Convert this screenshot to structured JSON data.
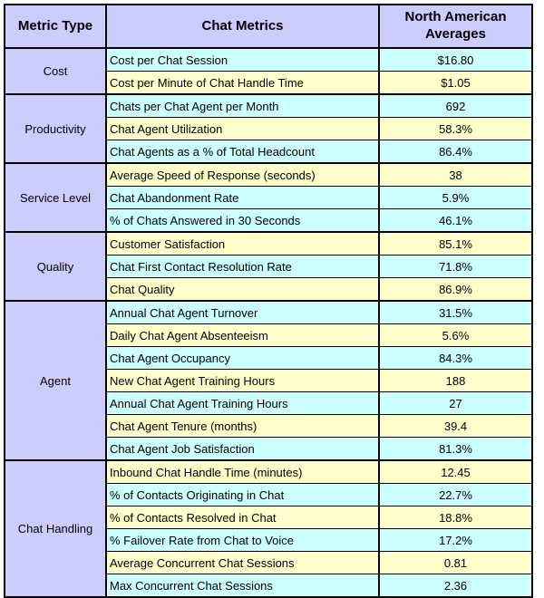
{
  "colors": {
    "lavender": "#CCCCFF",
    "cyan": "#CCFFFF",
    "yellow": "#FFFFCC",
    "border": "#000000",
    "text": "#000000",
    "page_bg": "#FFFFFF"
  },
  "columns": [
    "Metric Type",
    "Chat Metrics",
    "North American Averages"
  ],
  "groups": [
    {
      "type": "Cost",
      "rows": [
        {
          "metric": "Cost per Chat Session",
          "value": "$16.80",
          "tint": "cyan"
        },
        {
          "metric": "Cost per Minute of Chat Handle Time",
          "value": "$1.05",
          "tint": "yellow"
        }
      ]
    },
    {
      "type": "Productivity",
      "rows": [
        {
          "metric": "Chats per Chat Agent per Month",
          "value": "692",
          "tint": "cyan"
        },
        {
          "metric": "Chat Agent Utilization",
          "value": "58.3%",
          "tint": "yellow"
        },
        {
          "metric": "Chat Agents as a % of Total Headcount",
          "value": "86.4%",
          "tint": "cyan"
        }
      ]
    },
    {
      "type": "Service Level",
      "rows": [
        {
          "metric": "Average Speed of Response (seconds)",
          "value": "38",
          "tint": "yellow"
        },
        {
          "metric": "Chat Abandonment Rate",
          "value": "5.9%",
          "tint": "cyan"
        },
        {
          "metric": "% of Chats Answered in 30 Seconds",
          "value": "46.1%",
          "tint": "cyan"
        }
      ]
    },
    {
      "type": "Quality",
      "rows": [
        {
          "metric": "Customer Satisfaction",
          "value": "85.1%",
          "tint": "yellow"
        },
        {
          "metric": "Chat First Contact Resolution Rate",
          "value": "71.8%",
          "tint": "cyan"
        },
        {
          "metric": "Chat Quality",
          "value": "86.9%",
          "tint": "yellow"
        }
      ]
    },
    {
      "type": "Agent",
      "rows": [
        {
          "metric": "Annual Chat Agent Turnover",
          "value": "31.5%",
          "tint": "cyan"
        },
        {
          "metric": "Daily Chat Agent Absenteeism",
          "value": "5.6%",
          "tint": "yellow"
        },
        {
          "metric": "Chat Agent Occupancy",
          "value": "84.3%",
          "tint": "cyan"
        },
        {
          "metric": "New Chat Agent Training Hours",
          "value": "188",
          "tint": "yellow"
        },
        {
          "metric": "Annual Chat Agent Training Hours",
          "value": "27",
          "tint": "cyan"
        },
        {
          "metric": "Chat Agent Tenure (months)",
          "value": "39.4",
          "tint": "yellow"
        },
        {
          "metric": "Chat Agent Job Satisfaction",
          "value": "81.3%",
          "tint": "cyan"
        }
      ]
    },
    {
      "type": "Chat Handling",
      "rows": [
        {
          "metric": "Inbound Chat Handle Time (minutes)",
          "value": "12.45",
          "tint": "yellow"
        },
        {
          "metric": "% of Contacts Originating in Chat",
          "value": "22.7%",
          "tint": "cyan"
        },
        {
          "metric": "% of Contacts Resolved in Chat",
          "value": "18.8%",
          "tint": "yellow"
        },
        {
          "metric": "% Failover Rate from Chat to Voice",
          "value": "17.2%",
          "tint": "cyan"
        },
        {
          "metric": "Average Concurrent Chat Sessions",
          "value": "0.81",
          "tint": "yellow"
        },
        {
          "metric": "Max Concurrent Chat Sessions",
          "value": "2.36",
          "tint": "cyan"
        }
      ]
    }
  ],
  "chart_data": {
    "type": "table",
    "columns": [
      "Metric Type",
      "Chat Metrics",
      "North American Averages"
    ],
    "rows": [
      [
        "Cost",
        "Cost per Chat Session",
        "$16.80"
      ],
      [
        "Cost",
        "Cost per Minute of Chat Handle Time",
        "$1.05"
      ],
      [
        "Productivity",
        "Chats per Chat Agent per Month",
        "692"
      ],
      [
        "Productivity",
        "Chat Agent Utilization",
        "58.3%"
      ],
      [
        "Productivity",
        "Chat Agents as a % of Total Headcount",
        "86.4%"
      ],
      [
        "Service Level",
        "Average Speed of Response (seconds)",
        "38"
      ],
      [
        "Service Level",
        "Chat Abandonment Rate",
        "5.9%"
      ],
      [
        "Service Level",
        "% of Chats Answered in 30 Seconds",
        "46.1%"
      ],
      [
        "Quality",
        "Customer Satisfaction",
        "85.1%"
      ],
      [
        "Quality",
        "Chat First Contact Resolution Rate",
        "71.8%"
      ],
      [
        "Quality",
        "Chat Quality",
        "86.9%"
      ],
      [
        "Agent",
        "Annual Chat Agent Turnover",
        "31.5%"
      ],
      [
        "Agent",
        "Daily Chat Agent Absenteeism",
        "5.6%"
      ],
      [
        "Agent",
        "Chat Agent Occupancy",
        "84.3%"
      ],
      [
        "Agent",
        "New Chat Agent Training Hours",
        "188"
      ],
      [
        "Agent",
        "Annual Chat Agent Training Hours",
        "27"
      ],
      [
        "Agent",
        "Chat Agent Tenure (months)",
        "39.4"
      ],
      [
        "Agent",
        "Chat Agent Job Satisfaction",
        "81.3%"
      ],
      [
        "Chat Handling",
        "Inbound Chat Handle Time (minutes)",
        "12.45"
      ],
      [
        "Chat Handling",
        "% of Contacts Originating in Chat",
        "22.7%"
      ],
      [
        "Chat Handling",
        "% of Contacts Resolved in Chat",
        "18.8%"
      ],
      [
        "Chat Handling",
        "% Failover Rate from Chat to Voice",
        "17.2%"
      ],
      [
        "Chat Handling",
        "Average Concurrent Chat Sessions",
        "0.81"
      ],
      [
        "Chat Handling",
        "Max Concurrent Chat Sessions",
        "2.36"
      ]
    ]
  }
}
